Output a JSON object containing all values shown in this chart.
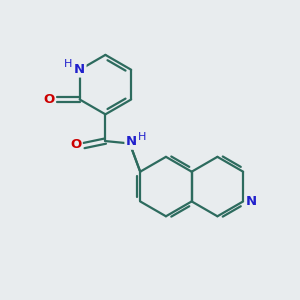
{
  "bg_color": "#e8ecee",
  "bond_color": "#2d6b5e",
  "bond_width": 1.6,
  "N_color": "#2020cc",
  "O_color": "#cc0000",
  "font_size": 9.5,
  "figsize": [
    3.0,
    3.0
  ],
  "dpi": 100,
  "xlim": [
    0,
    10
  ],
  "ylim": [
    0,
    10
  ]
}
